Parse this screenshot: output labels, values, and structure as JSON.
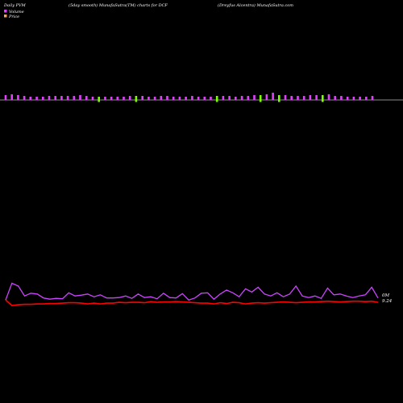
{
  "header": {
    "left": "Daily PVM",
    "middle": "(5day smooth) MunafaSutra(TM) charts for DCF",
    "right": "(Dreyfus Alcentra) MunafaSutra.com"
  },
  "legend": {
    "volume_label": "Volume",
    "price_label": "Price",
    "volume_color": "#e040fb",
    "price_color": "#f4a460"
  },
  "end_labels": {
    "volume": "0M",
    "price": "9.24"
  },
  "colors": {
    "background": "#000000",
    "volume_up": "#e040fb",
    "volume_down": "#7cfc00",
    "baseline": "#bbbbbb",
    "price_line": "#ff0000",
    "smooth_line": "#cc44ff"
  },
  "chart_data": {
    "type": "line",
    "volume_bars": {
      "count": 60,
      "values": [
        6,
        7,
        6,
        5,
        4,
        4,
        4,
        5,
        5,
        5,
        5,
        5,
        6,
        5,
        4,
        4,
        4,
        4,
        4,
        4,
        5,
        5,
        5,
        4,
        4,
        5,
        5,
        4,
        4,
        4,
        5,
        4,
        4,
        4,
        5,
        5,
        5,
        4,
        5,
        5,
        6,
        6,
        7,
        9,
        6,
        6,
        5,
        5,
        5,
        6,
        6,
        6,
        7,
        5,
        5,
        4,
        4,
        4,
        4,
        5
      ],
      "down": [
        0,
        0,
        0,
        0,
        0,
        0,
        0,
        0,
        0,
        0,
        0,
        0,
        0,
        0,
        0,
        1,
        0,
        0,
        0,
        0,
        0,
        1,
        0,
        0,
        0,
        0,
        0,
        0,
        0,
        0,
        0,
        0,
        0,
        0,
        1,
        0,
        0,
        0,
        0,
        0,
        0,
        1,
        0,
        0,
        1,
        0,
        0,
        0,
        0,
        0,
        0,
        1,
        0,
        0,
        0,
        0,
        0,
        0,
        0,
        0
      ]
    },
    "series": [
      {
        "name": "Price",
        "values": [
          9.3,
          9.16,
          9.18,
          9.19,
          9.19,
          9.2,
          9.2,
          9.21,
          9.21,
          9.22,
          9.23,
          9.23,
          9.22,
          9.2,
          9.22,
          9.2,
          9.22,
          9.22,
          9.24,
          9.23,
          9.24,
          9.24,
          9.23,
          9.26,
          9.24,
          9.25,
          9.25,
          9.26,
          9.25,
          9.24,
          9.23,
          9.22,
          9.22,
          9.2,
          9.23,
          9.21,
          9.24,
          9.23,
          9.2,
          9.22,
          9.23,
          9.22,
          9.23,
          9.24,
          9.25,
          9.24,
          9.23,
          9.24,
          9.25,
          9.25,
          9.26,
          9.27,
          9.26,
          9.25,
          9.26,
          9.27,
          9.27,
          9.26,
          9.27,
          9.24
        ]
      },
      {
        "name": "Volume",
        "values": [
          9.3,
          9.72,
          9.65,
          9.4,
          9.47,
          9.45,
          9.35,
          9.32,
          9.34,
          9.33,
          9.48,
          9.4,
          9.42,
          9.45,
          9.38,
          9.43,
          9.35,
          9.35,
          9.36,
          9.4,
          9.34,
          9.45,
          9.36,
          9.38,
          9.33,
          9.47,
          9.36,
          9.35,
          9.46,
          9.3,
          9.35,
          9.47,
          9.48,
          9.32,
          9.45,
          9.55,
          9.48,
          9.38,
          9.58,
          9.5,
          9.62,
          9.45,
          9.4,
          9.48,
          9.38,
          9.45,
          9.65,
          9.4,
          9.36,
          9.4,
          9.34,
          9.6,
          9.43,
          9.45,
          9.4,
          9.36,
          9.4,
          9.43,
          9.62,
          9.35
        ]
      }
    ]
  }
}
